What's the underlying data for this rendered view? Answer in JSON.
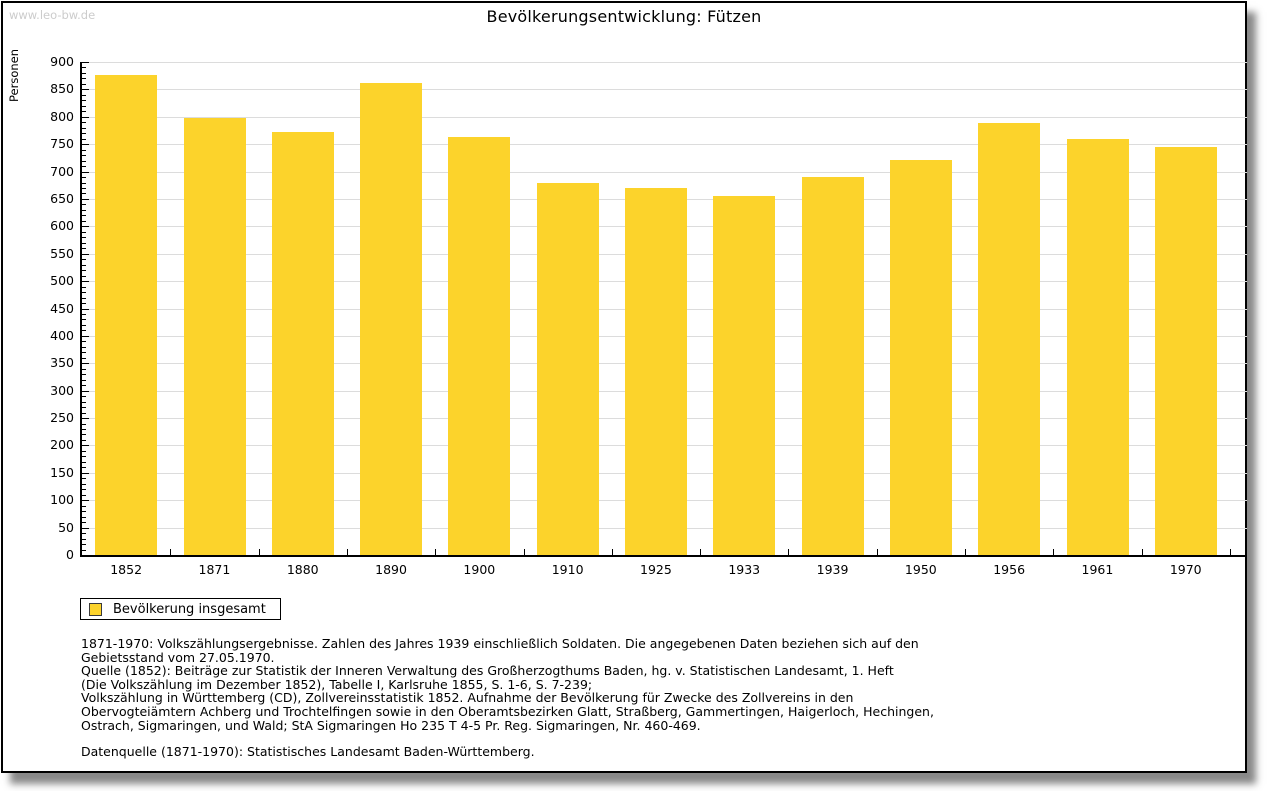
{
  "watermark": "www.leo-bw.de",
  "title": "Bevölkerungsentwicklung: Fützen",
  "legend": {
    "label": "Bevölkerung insgesamt"
  },
  "chart_data": {
    "type": "bar",
    "title": "Bevölkerungsentwicklung: Fützen",
    "categories": [
      "1852",
      "1871",
      "1880",
      "1890",
      "1900",
      "1910",
      "1925",
      "1933",
      "1939",
      "1950",
      "1956",
      "1961",
      "1970"
    ],
    "values": [
      876,
      798,
      772,
      862,
      763,
      679,
      670,
      655,
      691,
      722,
      788,
      759,
      745
    ],
    "series_name": "Bevölkerung insgesamt",
    "xlabel": "",
    "ylabel": "Personen",
    "ylim": [
      0,
      900
    ],
    "ytick_step": 50,
    "minor_tick_step": 10,
    "grid": true,
    "legend_position": "bottom-left",
    "bar_color": "#fcd32b"
  },
  "notes": {
    "paragraphs": [
      "1871-1970: Volkszählungsergebnisse. Zahlen des Jahres 1939 einschließlich Soldaten. Die angegebenen Daten beziehen sich auf den\nGebietsstand vom 27.05.1970.",
      "Quelle (1852): Beiträge zur Statistik der Inneren Verwaltung des Großherzogthums Baden, hg. v. Statistischen Landesamt, 1. Heft\n(Die Volkszählung im Dezember 1852), Tabelle I, Karlsruhe 1855, S. 1-6, S. 7-239;",
      "Volkszählung in Württemberg (CD), Zollvereinsstatistik 1852. Aufnahme der Bevölkerung für Zwecke des Zollvereins in den\nObervogteiämtern Achberg und Trochtelfingen sowie in den Oberamtsbezirken Glatt, Straßberg, Gammertingen, Haigerloch, Hechingen,\nOstrach, Sigmaringen, und Wald; StA Sigmaringen Ho 235 T 4-5 Pr. Reg. Sigmaringen, Nr. 460-469.",
      "Datenquelle (1871-1970): Statistisches Landesamt Baden-Württemberg."
    ]
  },
  "colors": {
    "bar": "#fcd32b",
    "grid": "#dcdcdc",
    "axis": "#000000",
    "watermark": "#cccccc",
    "text": "#000000"
  }
}
